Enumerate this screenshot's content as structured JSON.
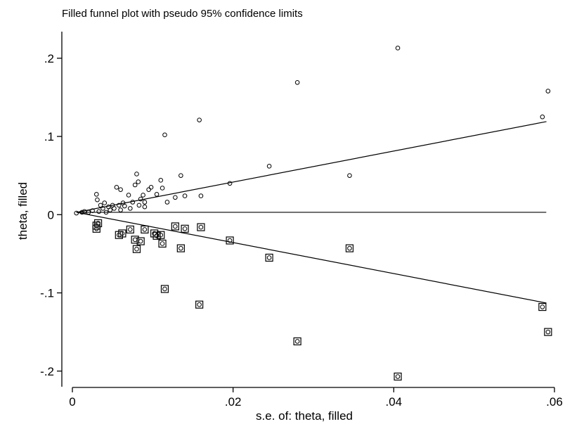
{
  "chart_data": {
    "type": "scatter",
    "title": "Filled funnel plot with pseudo 95% confidence limits",
    "xlabel": "s.e. of: theta, filled",
    "ylabel": "theta, filled",
    "xlim": [
      0,
      0.06
    ],
    "ylim": [
      -0.22,
      0.225
    ],
    "x_ticks": [
      {
        "value": 0,
        "label": "0"
      },
      {
        "value": 0.02,
        "label": ".02"
      },
      {
        "value": 0.04,
        "label": ".04"
      },
      {
        "value": 0.06,
        "label": ".06"
      }
    ],
    "y_ticks": [
      {
        "value": 0.2,
        "label": ".2"
      },
      {
        "value": 0.1,
        "label": ".1"
      },
      {
        "value": 0,
        "label": "0"
      },
      {
        "value": -0.1,
        "label": "-.1"
      },
      {
        "value": -0.2,
        "label": "-.2"
      }
    ],
    "grid": false,
    "pooled_estimate": 0.003,
    "confidence_limits": {
      "upper": [
        [
          0.0005,
          0.003
        ],
        [
          0.059,
          0.119
        ]
      ],
      "lower": [
        [
          0.0005,
          0.003
        ],
        [
          0.059,
          -0.113
        ]
      ]
    },
    "observed_studies": [
      [
        0.0005,
        0.002
      ],
      [
        0.0012,
        0.003
      ],
      [
        0.0015,
        0.004
      ],
      [
        0.002,
        0.003
      ],
      [
        0.0025,
        0.005
      ],
      [
        0.003,
        0.026
      ],
      [
        0.0031,
        0.019
      ],
      [
        0.0033,
        0.004
      ],
      [
        0.0035,
        0.012
      ],
      [
        0.0038,
        0.008
      ],
      [
        0.004,
        0.015
      ],
      [
        0.0042,
        0.003
      ],
      [
        0.0045,
        0.01
      ],
      [
        0.0047,
        0.006
      ],
      [
        0.005,
        0.012
      ],
      [
        0.0052,
        0.008
      ],
      [
        0.0055,
        0.035
      ],
      [
        0.0058,
        0.012
      ],
      [
        0.006,
        0.032
      ],
      [
        0.006,
        0.006
      ],
      [
        0.0063,
        0.015
      ],
      [
        0.0065,
        0.011
      ],
      [
        0.007,
        0.025
      ],
      [
        0.0072,
        0.008
      ],
      [
        0.0075,
        0.016
      ],
      [
        0.0078,
        0.038
      ],
      [
        0.008,
        0.052
      ],
      [
        0.0082,
        0.042
      ],
      [
        0.0083,
        0.012
      ],
      [
        0.0085,
        0.02
      ],
      [
        0.0088,
        0.025
      ],
      [
        0.009,
        0.016
      ],
      [
        0.009,
        0.01
      ],
      [
        0.0095,
        0.032
      ],
      [
        0.0098,
        0.035
      ],
      [
        0.0105,
        0.026
      ],
      [
        0.011,
        0.044
      ],
      [
        0.0112,
        0.034
      ],
      [
        0.0115,
        0.102
      ],
      [
        0.0118,
        0.016
      ],
      [
        0.0128,
        0.022
      ],
      [
        0.0135,
        0.05
      ],
      [
        0.014,
        0.024
      ],
      [
        0.0158,
        0.121
      ],
      [
        0.016,
        0.024
      ],
      [
        0.0196,
        0.04
      ],
      [
        0.0245,
        0.062
      ],
      [
        0.028,
        0.169
      ],
      [
        0.0345,
        0.05
      ],
      [
        0.0405,
        0.213
      ],
      [
        0.0585,
        0.125
      ],
      [
        0.0592,
        0.158
      ]
    ],
    "filled_studies": [
      [
        0.003,
        -0.014
      ],
      [
        0.003,
        -0.018
      ],
      [
        0.0032,
        -0.011
      ],
      [
        0.0058,
        -0.026
      ],
      [
        0.0062,
        -0.024
      ],
      [
        0.0072,
        -0.019
      ],
      [
        0.0078,
        -0.032
      ],
      [
        0.008,
        -0.044
      ],
      [
        0.0085,
        -0.034
      ],
      [
        0.009,
        -0.019
      ],
      [
        0.0102,
        -0.024
      ],
      [
        0.0105,
        -0.027
      ],
      [
        0.011,
        -0.026
      ],
      [
        0.0112,
        -0.037
      ],
      [
        0.0115,
        -0.095
      ],
      [
        0.0128,
        -0.015
      ],
      [
        0.0135,
        -0.043
      ],
      [
        0.014,
        -0.018
      ],
      [
        0.0158,
        -0.115
      ],
      [
        0.016,
        -0.016
      ],
      [
        0.0196,
        -0.033
      ],
      [
        0.0245,
        -0.055
      ],
      [
        0.028,
        -0.162
      ],
      [
        0.0345,
        -0.043
      ],
      [
        0.0405,
        -0.207
      ],
      [
        0.0585,
        -0.118
      ],
      [
        0.0592,
        -0.15
      ]
    ]
  }
}
